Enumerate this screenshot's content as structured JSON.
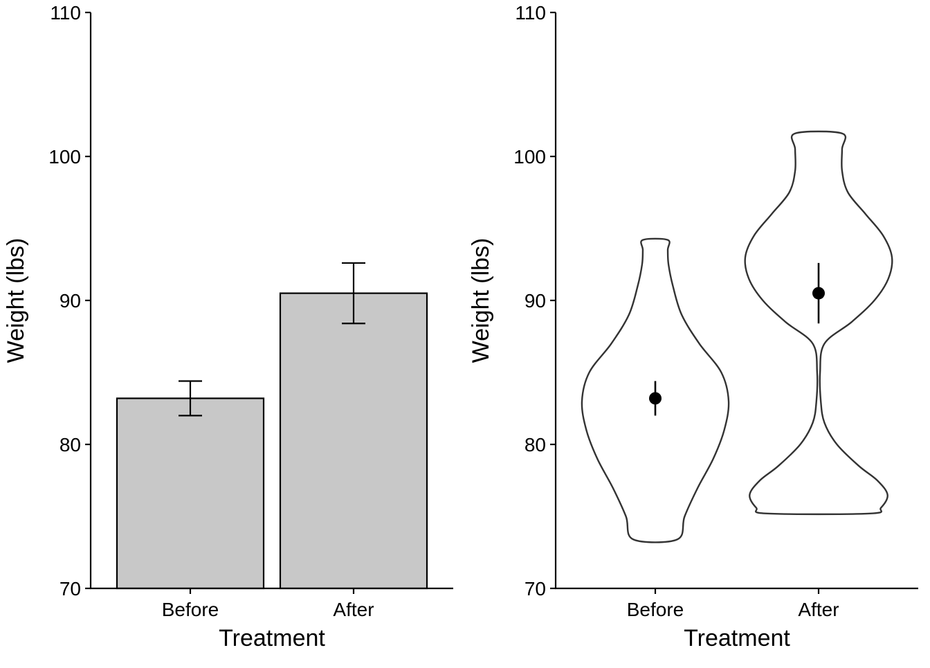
{
  "chart_data": [
    {
      "type": "bar",
      "title": "",
      "xlabel": "Treatment",
      "ylabel": "Weight (lbs)",
      "categories": [
        "Before",
        "After"
      ],
      "values": [
        83.2,
        90.5
      ],
      "error_bars": [
        {
          "low": 82.0,
          "high": 84.4
        },
        {
          "low": 88.4,
          "high": 92.6
        }
      ],
      "ylim": [
        70,
        110
      ],
      "yticks": [
        70,
        80,
        90,
        100,
        110
      ],
      "bar_fill": "#c8c8c8",
      "grid": false
    },
    {
      "type": "violin",
      "title": "",
      "xlabel": "Treatment",
      "ylabel": "Weight (lbs)",
      "categories": [
        "Before",
        "After"
      ],
      "means": [
        83.2,
        90.5
      ],
      "error_bars": [
        {
          "low": 82.0,
          "high": 84.4
        },
        {
          "low": 88.4,
          "high": 92.6
        }
      ],
      "violins": [
        {
          "category": "Before",
          "profile": [
            [
              73.4,
              0.3
            ],
            [
              75.0,
              0.4
            ],
            [
              77.0,
              0.58
            ],
            [
              79.0,
              0.79
            ],
            [
              81.0,
              0.94
            ],
            [
              83.0,
              1.0
            ],
            [
              85.0,
              0.9
            ],
            [
              87.0,
              0.6
            ],
            [
              89.0,
              0.36
            ],
            [
              91.0,
              0.24
            ],
            [
              92.5,
              0.18
            ],
            [
              93.5,
              0.17
            ],
            [
              94.2,
              0.17
            ]
          ]
        },
        {
          "category": "After",
          "profile": [
            [
              75.2,
              0.7
            ],
            [
              75.6,
              0.85
            ],
            [
              76.5,
              0.94
            ],
            [
              77.5,
              0.8
            ],
            [
              78.5,
              0.55
            ],
            [
              80.0,
              0.25
            ],
            [
              81.5,
              0.08
            ],
            [
              83.0,
              0.03
            ],
            [
              85.0,
              0.02
            ],
            [
              87.0,
              0.08
            ],
            [
              88.5,
              0.45
            ],
            [
              90.0,
              0.76
            ],
            [
              91.5,
              0.95
            ],
            [
              93.0,
              1.0
            ],
            [
              94.5,
              0.88
            ],
            [
              96.0,
              0.64
            ],
            [
              97.5,
              0.4
            ],
            [
              99.0,
              0.32
            ],
            [
              100.5,
              0.32
            ],
            [
              101.6,
              0.32
            ]
          ]
        }
      ],
      "ylim": [
        70,
        110
      ],
      "yticks": [
        70,
        80,
        90,
        100,
        110
      ],
      "grid": false
    }
  ]
}
